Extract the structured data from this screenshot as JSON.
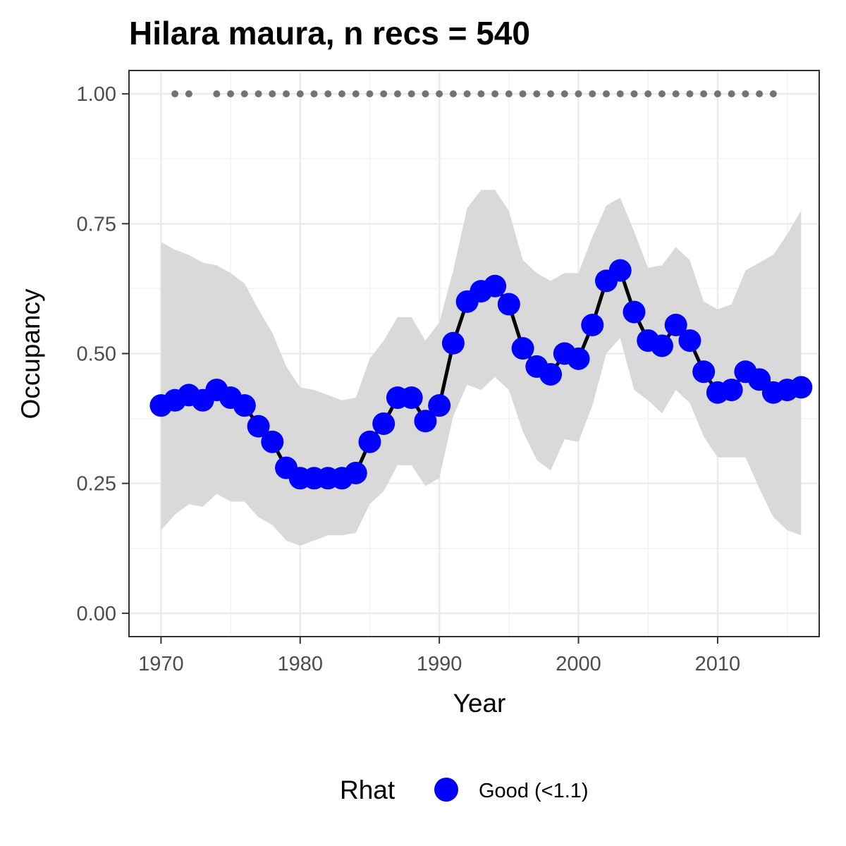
{
  "chart_data": {
    "type": "line",
    "title": "Hilara maura, n recs = 540",
    "xlabel": "Year",
    "ylabel": "Occupancy",
    "xlim": [
      1967.7,
      2017.3
    ],
    "ylim": [
      -0.045,
      1.045
    ],
    "x_ticks": [
      1970,
      1980,
      1990,
      2000,
      2010
    ],
    "x_tick_labels": [
      "1970",
      "1980",
      "1990",
      "2000",
      "2010"
    ],
    "y_ticks": [
      0,
      0.25,
      0.5,
      0.75,
      1.0
    ],
    "y_tick_labels": [
      "0.00",
      "0.25",
      "0.50",
      "0.75",
      "1.00"
    ],
    "grid": true,
    "legend": {
      "title": "Rhat",
      "position": "bottom",
      "entries": [
        {
          "label": "Good (<1.1)",
          "color": "#0000ff"
        }
      ]
    },
    "colors": {
      "points": "#0000ff",
      "line": "#000000",
      "ribbon": "#d9d9d9",
      "record_dots": "#737373"
    },
    "years": [
      1970,
      1971,
      1972,
      1973,
      1974,
      1975,
      1976,
      1977,
      1978,
      1979,
      1980,
      1981,
      1982,
      1983,
      1984,
      1985,
      1986,
      1987,
      1988,
      1989,
      1990,
      1991,
      1992,
      1993,
      1994,
      1995,
      1996,
      1997,
      1998,
      1999,
      2000,
      2001,
      2002,
      2003,
      2004,
      2005,
      2006,
      2007,
      2008,
      2009,
      2010,
      2011,
      2012,
      2013,
      2014,
      2015,
      2016
    ],
    "series": [
      {
        "role": "mean",
        "values": [
          0.4,
          0.41,
          0.42,
          0.41,
          0.43,
          0.415,
          0.4,
          0.36,
          0.33,
          0.28,
          0.26,
          0.26,
          0.26,
          0.26,
          0.27,
          0.33,
          0.365,
          0.415,
          0.415,
          0.37,
          0.4,
          0.52,
          0.6,
          0.62,
          0.63,
          0.595,
          0.51,
          0.475,
          0.46,
          0.5,
          0.49,
          0.555,
          0.64,
          0.66,
          0.58,
          0.525,
          0.515,
          0.555,
          0.525,
          0.465,
          0.425,
          0.43,
          0.465,
          0.45,
          0.425,
          0.43,
          0.435
        ]
      },
      {
        "role": "lower",
        "values": [
          0.16,
          0.19,
          0.21,
          0.205,
          0.23,
          0.215,
          0.215,
          0.185,
          0.17,
          0.14,
          0.13,
          0.14,
          0.15,
          0.15,
          0.155,
          0.21,
          0.235,
          0.285,
          0.285,
          0.245,
          0.26,
          0.38,
          0.44,
          0.43,
          0.455,
          0.43,
          0.35,
          0.295,
          0.275,
          0.335,
          0.33,
          0.4,
          0.5,
          0.53,
          0.43,
          0.41,
          0.385,
          0.43,
          0.405,
          0.34,
          0.3,
          0.3,
          0.3,
          0.24,
          0.185,
          0.16,
          0.15
        ]
      },
      {
        "role": "upper",
        "values": [
          0.715,
          0.7,
          0.69,
          0.675,
          0.67,
          0.655,
          0.635,
          0.585,
          0.54,
          0.475,
          0.435,
          0.43,
          0.42,
          0.41,
          0.415,
          0.49,
          0.525,
          0.57,
          0.57,
          0.525,
          0.56,
          0.66,
          0.78,
          0.815,
          0.815,
          0.775,
          0.68,
          0.655,
          0.64,
          0.655,
          0.655,
          0.725,
          0.785,
          0.8,
          0.735,
          0.665,
          0.67,
          0.705,
          0.68,
          0.6,
          0.585,
          0.595,
          0.66,
          0.675,
          0.69,
          0.73,
          0.775
        ]
      }
    ],
    "record_years": [
      1971,
      1972,
      1974,
      1975,
      1976,
      1977,
      1978,
      1979,
      1980,
      1981,
      1982,
      1983,
      1984,
      1985,
      1986,
      1987,
      1988,
      1989,
      1990,
      1991,
      1992,
      1993,
      1994,
      1995,
      1996,
      1997,
      1998,
      1999,
      2000,
      2001,
      2002,
      2003,
      2004,
      2005,
      2006,
      2007,
      2008,
      2009,
      2010,
      2011,
      2012,
      2013,
      2014
    ],
    "record_value": 1.0
  }
}
